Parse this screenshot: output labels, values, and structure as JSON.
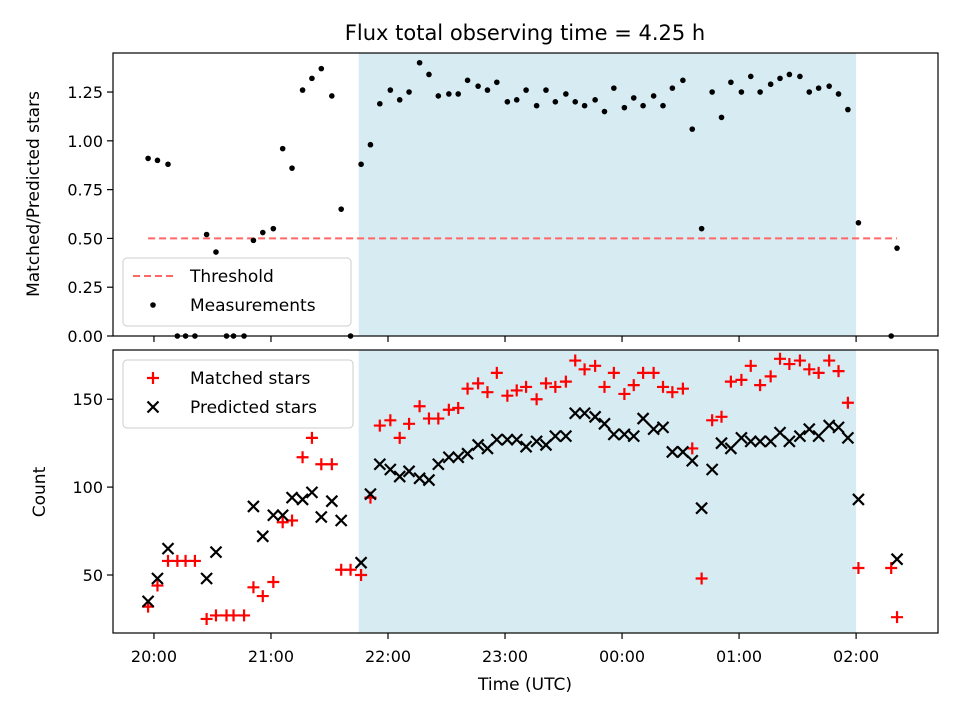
{
  "chart_data": [
    {
      "type": "scatter",
      "title": "Flux total observing time = 4.25 h",
      "ylabel": "Matched/Predicted stars",
      "xlabel": "",
      "x_unit": "hours since 20:00 UTC",
      "xlim": [
        -0.35,
        6.7
      ],
      "ylim": [
        0.0,
        1.45
      ],
      "yticks": [
        "0.00",
        "0.25",
        "0.50",
        "0.75",
        "1.00",
        "1.25"
      ],
      "ytick_values": [
        0,
        0.25,
        0.5,
        0.75,
        1.0,
        1.25
      ],
      "grid": false,
      "legend": "lower-left",
      "shaded_interval": {
        "from": 1.75,
        "to": 6.0,
        "color": "#add8e6"
      },
      "threshold": {
        "name": "Threshold",
        "value": 0.5,
        "from": -0.05,
        "to": 6.35,
        "color": "#ff6666",
        "dash": "dashed"
      },
      "series": [
        {
          "name": "Measurements",
          "color": "#000000",
          "points": [
            [
              -0.05,
              0.91
            ],
            [
              0.03,
              0.9
            ],
            [
              0.12,
              0.88
            ],
            [
              0.2,
              0.0
            ],
            [
              0.27,
              0.0
            ],
            [
              0.35,
              0.0
            ],
            [
              0.45,
              0.52
            ],
            [
              0.53,
              0.43
            ],
            [
              0.62,
              0.0
            ],
            [
              0.68,
              0.0
            ],
            [
              0.77,
              0.0
            ],
            [
              0.85,
              0.49
            ],
            [
              0.93,
              0.53
            ],
            [
              1.02,
              0.55
            ],
            [
              1.1,
              0.96
            ],
            [
              1.18,
              0.86
            ],
            [
              1.27,
              1.26
            ],
            [
              1.35,
              1.32
            ],
            [
              1.43,
              1.37
            ],
            [
              1.52,
              1.23
            ],
            [
              1.6,
              0.65
            ],
            [
              1.68,
              0.0
            ],
            [
              1.77,
              0.88
            ],
            [
              1.85,
              0.98
            ],
            [
              1.93,
              1.19
            ],
            [
              2.02,
              1.26
            ],
            [
              2.1,
              1.21
            ],
            [
              2.18,
              1.25
            ],
            [
              2.27,
              1.4
            ],
            [
              2.35,
              1.34
            ],
            [
              2.43,
              1.23
            ],
            [
              2.52,
              1.24
            ],
            [
              2.6,
              1.24
            ],
            [
              2.68,
              1.31
            ],
            [
              2.77,
              1.28
            ],
            [
              2.85,
              1.26
            ],
            [
              2.93,
              1.3
            ],
            [
              3.02,
              1.2
            ],
            [
              3.1,
              1.21
            ],
            [
              3.18,
              1.26
            ],
            [
              3.27,
              1.18
            ],
            [
              3.35,
              1.26
            ],
            [
              3.43,
              1.2
            ],
            [
              3.52,
              1.24
            ],
            [
              3.6,
              1.2
            ],
            [
              3.68,
              1.18
            ],
            [
              3.77,
              1.21
            ],
            [
              3.85,
              1.15
            ],
            [
              3.93,
              1.27
            ],
            [
              4.02,
              1.17
            ],
            [
              4.1,
              1.22
            ],
            [
              4.18,
              1.18
            ],
            [
              4.27,
              1.23
            ],
            [
              4.35,
              1.18
            ],
            [
              4.43,
              1.27
            ],
            [
              4.52,
              1.31
            ],
            [
              4.6,
              1.06
            ],
            [
              4.68,
              0.55
            ],
            [
              4.77,
              1.25
            ],
            [
              4.85,
              1.12
            ],
            [
              4.93,
              1.3
            ],
            [
              5.02,
              1.25
            ],
            [
              5.1,
              1.33
            ],
            [
              5.18,
              1.25
            ],
            [
              5.27,
              1.29
            ],
            [
              5.35,
              1.32
            ],
            [
              5.43,
              1.34
            ],
            [
              5.52,
              1.33
            ],
            [
              5.6,
              1.25
            ],
            [
              5.68,
              1.27
            ],
            [
              5.77,
              1.28
            ],
            [
              5.85,
              1.24
            ],
            [
              5.93,
              1.16
            ],
            [
              6.02,
              0.58
            ],
            [
              6.3,
              0.0
            ],
            [
              6.35,
              0.45
            ]
          ]
        }
      ]
    },
    {
      "type": "scatter",
      "title": "",
      "xlabel": "Time (UTC)",
      "ylabel": "Count",
      "x_unit": "hours since 20:00 UTC",
      "xlim": [
        -0.35,
        6.7
      ],
      "ylim": [
        17,
        178
      ],
      "xtick_values": [
        0,
        1,
        2,
        3,
        4,
        5,
        6
      ],
      "xticks": [
        "20:00",
        "21:00",
        "22:00",
        "23:00",
        "00:00",
        "01:00",
        "02:00"
      ],
      "yticks": [
        "50",
        "100",
        "150"
      ],
      "ytick_values": [
        50,
        100,
        150
      ],
      "grid": false,
      "legend": "upper-left",
      "shaded_interval": {
        "from": 1.75,
        "to": 6.0,
        "color": "#add8e6"
      },
      "series": [
        {
          "name": "Matched stars",
          "marker": "plus",
          "color": "#ff0000",
          "points": [
            [
              -0.05,
              32
            ],
            [
              0.03,
              44
            ],
            [
              0.12,
              58
            ],
            [
              0.2,
              58
            ],
            [
              0.27,
              58
            ],
            [
              0.35,
              58
            ],
            [
              0.45,
              25
            ],
            [
              0.53,
              27
            ],
            [
              0.62,
              27
            ],
            [
              0.68,
              27
            ],
            [
              0.77,
              27
            ],
            [
              0.85,
              43
            ],
            [
              0.93,
              38
            ],
            [
              1.02,
              46
            ],
            [
              1.1,
              80
            ],
            [
              1.18,
              81
            ],
            [
              1.27,
              117
            ],
            [
              1.35,
              128
            ],
            [
              1.43,
              113
            ],
            [
              1.52,
              113
            ],
            [
              1.6,
              53
            ],
            [
              1.68,
              53
            ],
            [
              1.77,
              50
            ],
            [
              1.85,
              94
            ],
            [
              1.93,
              135
            ],
            [
              2.02,
              138
            ],
            [
              2.1,
              128
            ],
            [
              2.18,
              136
            ],
            [
              2.27,
              146
            ],
            [
              2.35,
              139
            ],
            [
              2.43,
              139
            ],
            [
              2.52,
              144
            ],
            [
              2.6,
              145
            ],
            [
              2.68,
              156
            ],
            [
              2.77,
              159
            ],
            [
              2.85,
              154
            ],
            [
              2.93,
              165
            ],
            [
              3.02,
              152
            ],
            [
              3.1,
              155
            ],
            [
              3.18,
              157
            ],
            [
              3.27,
              150
            ],
            [
              3.35,
              159
            ],
            [
              3.43,
              157
            ],
            [
              3.52,
              160
            ],
            [
              3.6,
              172
            ],
            [
              3.68,
              167
            ],
            [
              3.77,
              169
            ],
            [
              3.85,
              157
            ],
            [
              3.93,
              165
            ],
            [
              4.02,
              153
            ],
            [
              4.1,
              158
            ],
            [
              4.18,
              165
            ],
            [
              4.27,
              165
            ],
            [
              4.35,
              157
            ],
            [
              4.43,
              154
            ],
            [
              4.52,
              156
            ],
            [
              4.6,
              122
            ],
            [
              4.68,
              48
            ],
            [
              4.77,
              138
            ],
            [
              4.85,
              140
            ],
            [
              4.93,
              160
            ],
            [
              5.02,
              161
            ],
            [
              5.1,
              169
            ],
            [
              5.18,
              158
            ],
            [
              5.27,
              163
            ],
            [
              5.35,
              173
            ],
            [
              5.43,
              170
            ],
            [
              5.52,
              172
            ],
            [
              5.6,
              167
            ],
            [
              5.68,
              165
            ],
            [
              5.77,
              172
            ],
            [
              5.85,
              166
            ],
            [
              5.93,
              148
            ],
            [
              6.02,
              54
            ],
            [
              6.3,
              54
            ],
            [
              6.35,
              26
            ]
          ]
        },
        {
          "name": "Predicted stars",
          "marker": "x",
          "color": "#000000",
          "points": [
            [
              -0.05,
              35
            ],
            [
              0.03,
              48
            ],
            [
              0.12,
              65
            ],
            [
              0.45,
              48
            ],
            [
              0.53,
              63
            ],
            [
              0.85,
              89
            ],
            [
              0.93,
              72
            ],
            [
              1.02,
              84
            ],
            [
              1.1,
              84
            ],
            [
              1.18,
              94
            ],
            [
              1.27,
              93
            ],
            [
              1.35,
              97
            ],
            [
              1.43,
              83
            ],
            [
              1.52,
              92
            ],
            [
              1.6,
              81
            ],
            [
              1.77,
              57
            ],
            [
              1.85,
              96
            ],
            [
              1.93,
              113
            ],
            [
              2.02,
              110
            ],
            [
              2.1,
              106
            ],
            [
              2.18,
              109
            ],
            [
              2.27,
              105
            ],
            [
              2.35,
              104
            ],
            [
              2.43,
              113
            ],
            [
              2.52,
              117
            ],
            [
              2.6,
              117
            ],
            [
              2.68,
              119
            ],
            [
              2.77,
              124
            ],
            [
              2.85,
              122
            ],
            [
              2.93,
              127
            ],
            [
              3.02,
              127
            ],
            [
              3.1,
              127
            ],
            [
              3.18,
              123
            ],
            [
              3.27,
              126
            ],
            [
              3.35,
              124
            ],
            [
              3.43,
              129
            ],
            [
              3.52,
              129
            ],
            [
              3.6,
              142
            ],
            [
              3.68,
              142
            ],
            [
              3.77,
              140
            ],
            [
              3.85,
              136
            ],
            [
              3.93,
              130
            ],
            [
              4.02,
              130
            ],
            [
              4.1,
              129
            ],
            [
              4.18,
              139
            ],
            [
              4.27,
              133
            ],
            [
              4.35,
              134
            ],
            [
              4.43,
              120
            ],
            [
              4.52,
              120
            ],
            [
              4.6,
              115
            ],
            [
              4.68,
              88
            ],
            [
              4.77,
              110
            ],
            [
              4.85,
              125
            ],
            [
              4.93,
              122
            ],
            [
              5.02,
              128
            ],
            [
              5.1,
              126
            ],
            [
              5.18,
              126
            ],
            [
              5.27,
              126
            ],
            [
              5.35,
              131
            ],
            [
              5.43,
              126
            ],
            [
              5.52,
              129
            ],
            [
              5.6,
              133
            ],
            [
              5.68,
              129
            ],
            [
              5.77,
              135
            ],
            [
              5.85,
              134
            ],
            [
              5.93,
              128
            ],
            [
              6.02,
              93
            ],
            [
              6.35,
              59
            ]
          ]
        }
      ]
    }
  ]
}
